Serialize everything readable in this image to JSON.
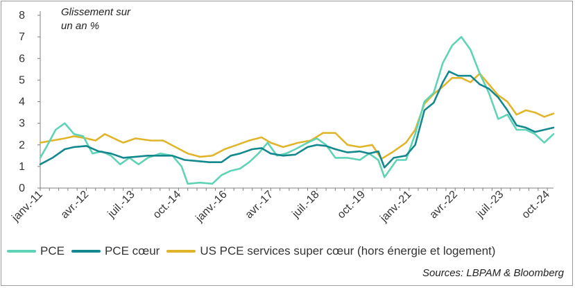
{
  "chart_data": {
    "type": "line",
    "title": "",
    "annotation_lines": [
      "Glissement sur",
      "un an %"
    ],
    "xlabel": "",
    "ylabel": "",
    "ylim": [
      0,
      8
    ],
    "yticks": [
      "0",
      "1",
      "2",
      "3",
      "4",
      "5",
      "6",
      "7",
      "8"
    ],
    "xlim": [
      "2011-01",
      "2024-12"
    ],
    "xticks": [
      {
        "date": "2011-01",
        "label": "janv.-11"
      },
      {
        "date": "2012-04",
        "label": "avr.-12"
      },
      {
        "date": "2013-07",
        "label": "juil.-13"
      },
      {
        "date": "2014-10",
        "label": "oct.-14"
      },
      {
        "date": "2016-01",
        "label": "janv.-16"
      },
      {
        "date": "2017-04",
        "label": "avr.-17"
      },
      {
        "date": "2018-07",
        "label": "juil.-18"
      },
      {
        "date": "2019-10",
        "label": "oct.-19"
      },
      {
        "date": "2021-01",
        "label": "janv.-21"
      },
      {
        "date": "2022-04",
        "label": "avr.-22"
      },
      {
        "date": "2023-07",
        "label": "juil.-23"
      },
      {
        "date": "2024-10",
        "label": "oct.-24"
      }
    ],
    "grid": false,
    "legend_position": "bottom",
    "series": [
      {
        "name": "US PCE services super cœur (hors énergie et logement)",
        "color": "#E1B52A",
        "points": [
          [
            "2011-01",
            2.1
          ],
          [
            "2011-05",
            2.2
          ],
          [
            "2011-09",
            2.3
          ],
          [
            "2011-12",
            2.4
          ],
          [
            "2012-04",
            2.3
          ],
          [
            "2012-07",
            2.2
          ],
          [
            "2012-10",
            2.5
          ],
          [
            "2013-01",
            2.3
          ],
          [
            "2013-04",
            2.1
          ],
          [
            "2013-08",
            2.3
          ],
          [
            "2014-01",
            2.2
          ],
          [
            "2014-05",
            2.2
          ],
          [
            "2014-09",
            1.9
          ],
          [
            "2015-01",
            1.6
          ],
          [
            "2015-05",
            1.45
          ],
          [
            "2015-09",
            1.5
          ],
          [
            "2016-01",
            1.8
          ],
          [
            "2016-05",
            2.0
          ],
          [
            "2016-09",
            2.2
          ],
          [
            "2017-01",
            2.35
          ],
          [
            "2017-04",
            2.1
          ],
          [
            "2017-08",
            1.9
          ],
          [
            "2018-01",
            2.1
          ],
          [
            "2018-05",
            2.2
          ],
          [
            "2018-09",
            2.55
          ],
          [
            "2019-01",
            2.55
          ],
          [
            "2019-05",
            2.0
          ],
          [
            "2019-09",
            1.9
          ],
          [
            "2020-01",
            2.0
          ],
          [
            "2020-04",
            1.35
          ],
          [
            "2020-08",
            1.7
          ],
          [
            "2020-12",
            2.1
          ],
          [
            "2021-03",
            2.7
          ],
          [
            "2021-06",
            3.9
          ],
          [
            "2021-09",
            4.35
          ],
          [
            "2021-12",
            4.7
          ],
          [
            "2022-03",
            5.1
          ],
          [
            "2022-06",
            5.1
          ],
          [
            "2022-09",
            4.9
          ],
          [
            "2022-12",
            5.3
          ],
          [
            "2023-03",
            4.8
          ],
          [
            "2023-06",
            4.3
          ],
          [
            "2023-09",
            4.0
          ],
          [
            "2023-12",
            3.4
          ],
          [
            "2024-03",
            3.6
          ],
          [
            "2024-06",
            3.5
          ],
          [
            "2024-09",
            3.3
          ],
          [
            "2024-12",
            3.45
          ]
        ]
      },
      {
        "name": "PCE",
        "color": "#5FD3B6",
        "points": [
          [
            "2011-01",
            1.4
          ],
          [
            "2011-03",
            1.9
          ],
          [
            "2011-06",
            2.7
          ],
          [
            "2011-09",
            3.0
          ],
          [
            "2011-12",
            2.5
          ],
          [
            "2012-03",
            2.4
          ],
          [
            "2012-06",
            1.6
          ],
          [
            "2012-09",
            1.7
          ],
          [
            "2012-12",
            1.5
          ],
          [
            "2013-03",
            1.1
          ],
          [
            "2013-06",
            1.4
          ],
          [
            "2013-09",
            1.1
          ],
          [
            "2013-12",
            1.4
          ],
          [
            "2014-04",
            1.6
          ],
          [
            "2014-08",
            1.5
          ],
          [
            "2014-11",
            1.0
          ],
          [
            "2015-01",
            0.2
          ],
          [
            "2015-05",
            0.25
          ],
          [
            "2015-09",
            0.2
          ],
          [
            "2015-12",
            0.6
          ],
          [
            "2016-03",
            0.8
          ],
          [
            "2016-06",
            0.9
          ],
          [
            "2016-09",
            1.2
          ],
          [
            "2016-12",
            1.6
          ],
          [
            "2017-03",
            2.1
          ],
          [
            "2017-06",
            1.5
          ],
          [
            "2017-09",
            1.6
          ],
          [
            "2017-12",
            1.8
          ],
          [
            "2018-04",
            2.1
          ],
          [
            "2018-07",
            2.3
          ],
          [
            "2018-10",
            2.0
          ],
          [
            "2019-01",
            1.4
          ],
          [
            "2019-05",
            1.4
          ],
          [
            "2019-09",
            1.3
          ],
          [
            "2019-12",
            1.6
          ],
          [
            "2020-03",
            1.3
          ],
          [
            "2020-05",
            0.5
          ],
          [
            "2020-09",
            1.3
          ],
          [
            "2020-12",
            1.3
          ],
          [
            "2021-03",
            2.5
          ],
          [
            "2021-06",
            4.0
          ],
          [
            "2021-09",
            4.4
          ],
          [
            "2021-12",
            5.8
          ],
          [
            "2022-03",
            6.6
          ],
          [
            "2022-06",
            7.0
          ],
          [
            "2022-09",
            6.4
          ],
          [
            "2022-12",
            5.3
          ],
          [
            "2023-03",
            4.4
          ],
          [
            "2023-06",
            3.2
          ],
          [
            "2023-09",
            3.4
          ],
          [
            "2023-12",
            2.7
          ],
          [
            "2024-03",
            2.7
          ],
          [
            "2024-06",
            2.5
          ],
          [
            "2024-09",
            2.1
          ],
          [
            "2024-12",
            2.5
          ]
        ]
      },
      {
        "name": "PCE cœur",
        "color": "#13888E",
        "points": [
          [
            "2011-01",
            1.1
          ],
          [
            "2011-05",
            1.4
          ],
          [
            "2011-09",
            1.8
          ],
          [
            "2011-12",
            1.9
          ],
          [
            "2012-04",
            1.95
          ],
          [
            "2012-08",
            1.7
          ],
          [
            "2012-12",
            1.6
          ],
          [
            "2013-04",
            1.4
          ],
          [
            "2013-08",
            1.45
          ],
          [
            "2013-12",
            1.5
          ],
          [
            "2014-04",
            1.5
          ],
          [
            "2014-08",
            1.5
          ],
          [
            "2014-12",
            1.3
          ],
          [
            "2015-04",
            1.25
          ],
          [
            "2015-08",
            1.2
          ],
          [
            "2015-12",
            1.2
          ],
          [
            "2016-03",
            1.5
          ],
          [
            "2016-06",
            1.6
          ],
          [
            "2016-10",
            1.8
          ],
          [
            "2017-01",
            1.85
          ],
          [
            "2017-04",
            1.6
          ],
          [
            "2017-08",
            1.5
          ],
          [
            "2017-12",
            1.55
          ],
          [
            "2018-04",
            1.9
          ],
          [
            "2018-07",
            2.0
          ],
          [
            "2018-10",
            1.95
          ],
          [
            "2019-01",
            1.8
          ],
          [
            "2019-05",
            1.65
          ],
          [
            "2019-09",
            1.7
          ],
          [
            "2019-12",
            1.6
          ],
          [
            "2020-03",
            1.7
          ],
          [
            "2020-05",
            0.95
          ],
          [
            "2020-08",
            1.4
          ],
          [
            "2020-12",
            1.5
          ],
          [
            "2021-03",
            2.0
          ],
          [
            "2021-06",
            3.6
          ],
          [
            "2021-09",
            3.95
          ],
          [
            "2021-12",
            4.9
          ],
          [
            "2022-02",
            5.4
          ],
          [
            "2022-05",
            5.2
          ],
          [
            "2022-09",
            5.2
          ],
          [
            "2022-12",
            4.8
          ],
          [
            "2023-03",
            4.6
          ],
          [
            "2023-06",
            4.2
          ],
          [
            "2023-09",
            3.6
          ],
          [
            "2023-12",
            2.9
          ],
          [
            "2024-03",
            2.8
          ],
          [
            "2024-06",
            2.6
          ],
          [
            "2024-09",
            2.7
          ],
          [
            "2024-12",
            2.8
          ]
        ]
      }
    ]
  },
  "legend": {
    "items": [
      {
        "label": "PCE",
        "color": "#5FD3B6"
      },
      {
        "label": "PCE cœur",
        "color": "#13888E"
      },
      {
        "label": "US PCE services super cœur (hors énergie et logement)",
        "color": "#E1B52A"
      }
    ]
  },
  "source": "Sources: LBPAM & Bloomberg"
}
